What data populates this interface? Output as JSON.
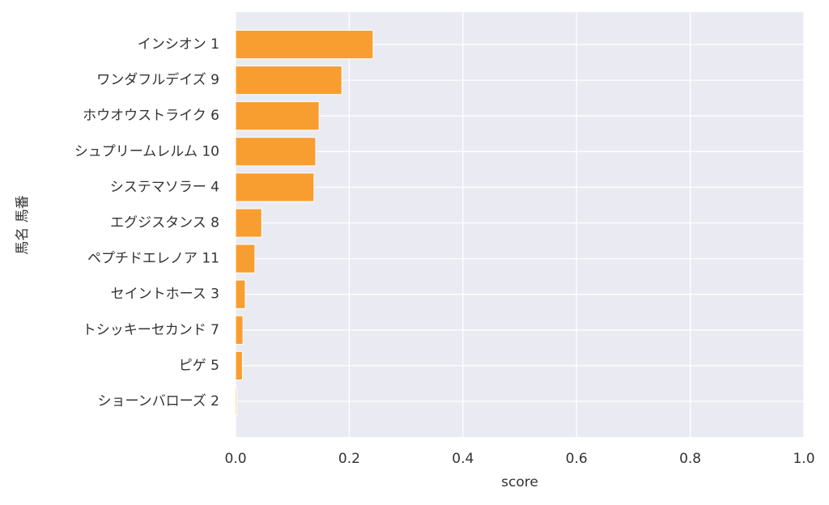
{
  "chart_data": {
    "type": "barh",
    "categories": [
      "インシオン 1",
      "ワンダフルデイズ 9",
      "ホウオウストライク 6",
      "シュプリームレルム 10",
      "システマソラー 4",
      "エグジスタンス 8",
      "ペプチドエレノア 11",
      "セイントホース 3",
      "トシッキーセカンド 7",
      "ピゲ 5",
      "ショーンバローズ 2"
    ],
    "values": [
      0.242,
      0.187,
      0.147,
      0.141,
      0.138,
      0.046,
      0.034,
      0.017,
      0.013,
      0.012,
      0.002
    ],
    "color": "#f99a26",
    "xlabel": "score",
    "ylabel": "馬名 馬番",
    "xlim": [
      0,
      1
    ],
    "xticks": [
      {
        "value": 0,
        "label": "0.0"
      },
      {
        "value": 0.2,
        "label": "0.2"
      },
      {
        "value": 0.4,
        "label": "0.4"
      },
      {
        "value": 0.6,
        "label": "0.6"
      },
      {
        "value": 0.8,
        "label": "0.8"
      },
      {
        "value": 1,
        "label": "1.0"
      }
    ],
    "grid": true
  }
}
